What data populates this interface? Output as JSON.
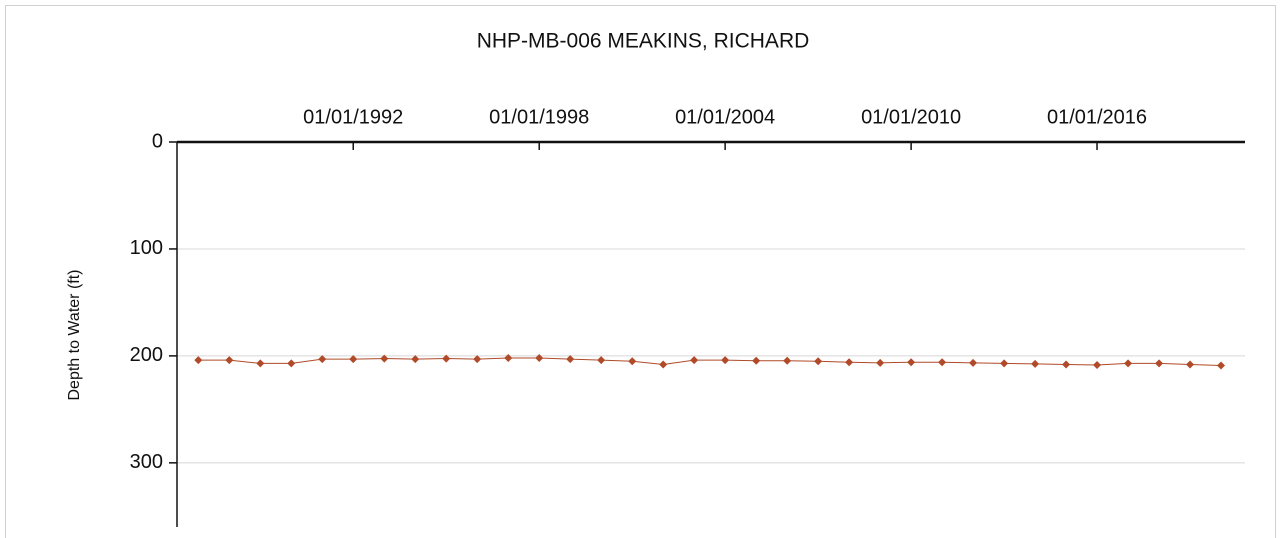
{
  "chart_data": {
    "type": "line",
    "title": "NHP-MB-006 MEAKINS, RICHARD",
    "y_label": "Depth to Water (ft)",
    "x": [
      "01/01/1987",
      "01/01/1988",
      "01/01/1989",
      "01/01/1990",
      "01/01/1991",
      "01/01/1992",
      "01/01/1993",
      "01/01/1994",
      "01/01/1995",
      "01/01/1996",
      "01/01/1997",
      "01/01/1998",
      "01/01/1999",
      "01/01/2000",
      "01/01/2001",
      "01/01/2002",
      "01/01/2003",
      "01/01/2004",
      "01/01/2005",
      "01/01/2006",
      "01/01/2007",
      "01/01/2008",
      "01/01/2009",
      "01/01/2010",
      "01/01/2011",
      "01/01/2012",
      "01/01/2013",
      "01/01/2014",
      "01/01/2015",
      "01/01/2016",
      "01/01/2017",
      "01/01/2018",
      "01/01/2019",
      "01/01/2020"
    ],
    "series": [
      {
        "name": "Depth to Water",
        "color": "#b04a28",
        "values": [
          204,
          204,
          207,
          207,
          203,
          203,
          202.5,
          203,
          202.5,
          203,
          202,
          202,
          203,
          204,
          205,
          208,
          204,
          204,
          204.5,
          204.5,
          205,
          206,
          206.5,
          206,
          206,
          206.5,
          207,
          207.5,
          208,
          208.5,
          207,
          207,
          208,
          209
        ]
      }
    ],
    "xlim": [
      "04/25/1986",
      "10/10/2020"
    ],
    "xticks": [
      "01/01/1992",
      "01/01/1998",
      "01/01/2004",
      "01/01/2010",
      "01/01/2016"
    ],
    "ylim": [
      0,
      360
    ],
    "yticks": [
      0,
      100,
      200,
      300
    ],
    "y_inverted": true,
    "x_axis_position": "top",
    "grid": true
  }
}
